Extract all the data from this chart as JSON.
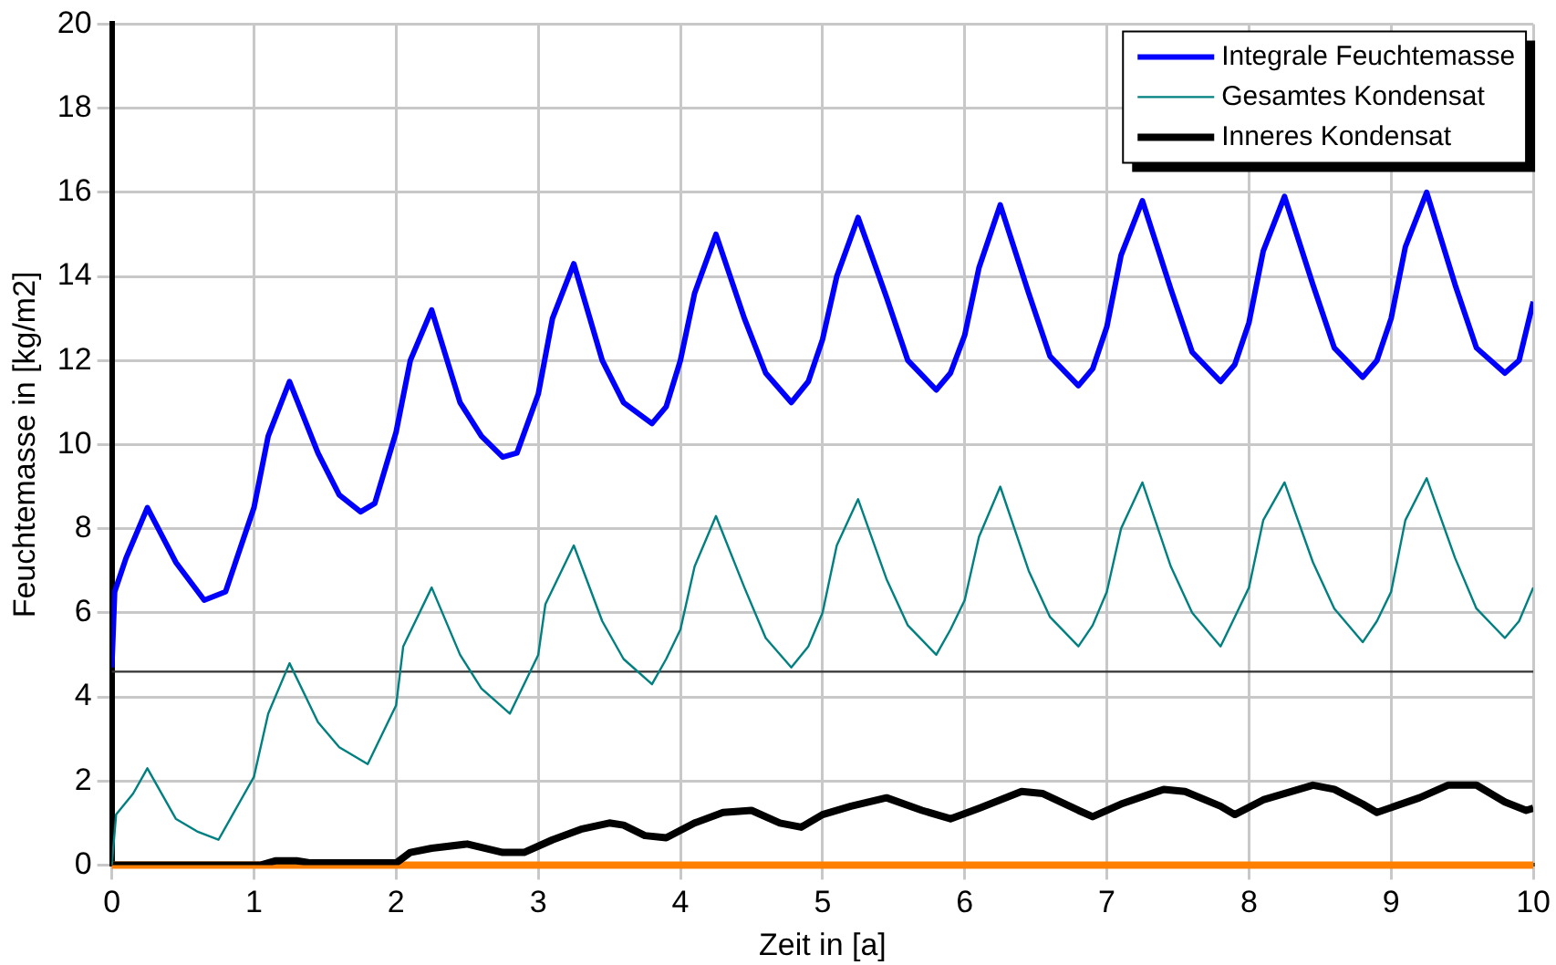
{
  "chart_data": {
    "type": "line",
    "xlabel": "Zeit in [a]",
    "ylabel": "Feuchtemasse in [kg/m2]",
    "xlim": [
      0,
      10
    ],
    "ylim": [
      0,
      20
    ],
    "xticks": [
      0,
      1,
      2,
      3,
      4,
      5,
      6,
      7,
      8,
      9,
      10
    ],
    "yticks": [
      0,
      2,
      4,
      6,
      8,
      10,
      12,
      14,
      16,
      18,
      20
    ],
    "grid": true,
    "legend": "top right",
    "marker": "none",
    "line_style": "solid",
    "ref_lines": [
      {
        "axis": "y",
        "value": 4.6,
        "color": "#333333"
      },
      {
        "axis": "y",
        "value": 0,
        "color": "#ff8000"
      }
    ],
    "series": [
      {
        "name": "Integrale Feuchtemasse",
        "color": "#0000ff",
        "x": [
          0,
          0.02,
          0.1,
          0.25,
          0.45,
          0.65,
          0.8,
          1.0,
          1.1,
          1.25,
          1.45,
          1.6,
          1.75,
          1.85,
          2.0,
          2.1,
          2.25,
          2.45,
          2.6,
          2.75,
          2.85,
          3.0,
          3.1,
          3.25,
          3.45,
          3.6,
          3.8,
          3.9,
          4.0,
          4.1,
          4.25,
          4.45,
          4.6,
          4.78,
          4.9,
          5.0,
          5.1,
          5.25,
          5.45,
          5.6,
          5.8,
          5.9,
          6.0,
          6.1,
          6.25,
          6.45,
          6.6,
          6.8,
          6.9,
          7.0,
          7.1,
          7.25,
          7.45,
          7.6,
          7.8,
          7.9,
          8.0,
          8.1,
          8.25,
          8.45,
          8.6,
          8.8,
          8.9,
          9.0,
          9.1,
          9.25,
          9.45,
          9.6,
          9.8,
          9.9,
          10
        ],
        "values": [
          4.7,
          6.5,
          7.3,
          8.5,
          7.2,
          6.3,
          6.5,
          8.5,
          10.2,
          11.5,
          9.8,
          8.8,
          8.4,
          8.6,
          10.3,
          12.0,
          13.2,
          11.0,
          10.2,
          9.7,
          9.8,
          11.2,
          13.0,
          14.3,
          12.0,
          11.0,
          10.5,
          10.9,
          12.0,
          13.6,
          15.0,
          13.0,
          11.7,
          11.0,
          11.5,
          12.5,
          14.0,
          15.4,
          13.5,
          12.0,
          11.3,
          11.7,
          12.6,
          14.2,
          15.7,
          13.6,
          12.1,
          11.4,
          11.8,
          12.8,
          14.5,
          15.8,
          13.7,
          12.2,
          11.5,
          11.9,
          12.9,
          14.6,
          15.9,
          13.8,
          12.3,
          11.6,
          12.0,
          13.0,
          14.7,
          16.0,
          13.8,
          12.3,
          11.7,
          12.0,
          13.4
        ]
      },
      {
        "name": "Gesamtes Kondensat",
        "color": "#008080",
        "x": [
          0,
          0.03,
          0.15,
          0.25,
          0.45,
          0.6,
          0.75,
          0.9,
          1.0,
          1.1,
          1.25,
          1.45,
          1.6,
          1.8,
          1.9,
          2.0,
          2.05,
          2.25,
          2.45,
          2.6,
          2.8,
          2.9,
          3.0,
          3.05,
          3.25,
          3.45,
          3.6,
          3.8,
          3.9,
          4.0,
          4.1,
          4.25,
          4.45,
          4.6,
          4.78,
          4.9,
          5.0,
          5.1,
          5.25,
          5.45,
          5.6,
          5.8,
          5.9,
          6.0,
          6.1,
          6.25,
          6.45,
          6.6,
          6.8,
          6.9,
          7.0,
          7.1,
          7.25,
          7.45,
          7.6,
          7.8,
          7.9,
          8.0,
          8.1,
          8.25,
          8.45,
          8.6,
          8.8,
          8.9,
          9.0,
          9.1,
          9.25,
          9.45,
          9.6,
          9.8,
          9.9,
          10
        ],
        "values": [
          0,
          1.2,
          1.7,
          2.3,
          1.1,
          0.8,
          0.6,
          1.5,
          2.1,
          3.6,
          4.8,
          3.4,
          2.8,
          2.4,
          3.1,
          3.8,
          5.2,
          6.6,
          5.0,
          4.2,
          3.6,
          4.3,
          5.0,
          6.2,
          7.6,
          5.8,
          4.9,
          4.3,
          4.9,
          5.6,
          7.1,
          8.3,
          6.6,
          5.4,
          4.7,
          5.2,
          6.0,
          7.6,
          8.7,
          6.8,
          5.7,
          5.0,
          5.6,
          6.3,
          7.8,
          9.0,
          7.0,
          5.9,
          5.2,
          5.7,
          6.5,
          8.0,
          9.1,
          7.1,
          6.0,
          5.2,
          5.9,
          6.6,
          8.2,
          9.1,
          7.2,
          6.1,
          5.3,
          5.8,
          6.5,
          8.2,
          9.2,
          7.3,
          6.1,
          5.4,
          5.8,
          6.6
        ]
      },
      {
        "name": "Inneres Kondensat",
        "color": "#000000",
        "x": [
          0,
          1.05,
          1.15,
          1.3,
          1.4,
          2.0,
          2.1,
          2.25,
          2.5,
          2.75,
          2.9,
          3.1,
          3.3,
          3.5,
          3.6,
          3.75,
          3.9,
          4.1,
          4.3,
          4.5,
          4.7,
          4.85,
          5.0,
          5.2,
          5.45,
          5.7,
          5.9,
          6.1,
          6.4,
          6.55,
          6.8,
          6.9,
          7.1,
          7.4,
          7.55,
          7.8,
          7.9,
          8.1,
          8.45,
          8.6,
          8.8,
          8.9,
          9.2,
          9.4,
          9.6,
          9.8,
          9.95,
          10
        ],
        "values": [
          0,
          0,
          0.1,
          0.1,
          0.05,
          0.05,
          0.3,
          0.4,
          0.5,
          0.3,
          0.3,
          0.6,
          0.85,
          1.0,
          0.95,
          0.7,
          0.65,
          1.0,
          1.25,
          1.3,
          1.0,
          0.9,
          1.2,
          1.4,
          1.6,
          1.3,
          1.1,
          1.35,
          1.75,
          1.7,
          1.3,
          1.15,
          1.45,
          1.8,
          1.75,
          1.4,
          1.2,
          1.55,
          1.9,
          1.8,
          1.45,
          1.25,
          1.6,
          1.9,
          1.9,
          1.5,
          1.3,
          1.35
        ]
      }
    ]
  }
}
